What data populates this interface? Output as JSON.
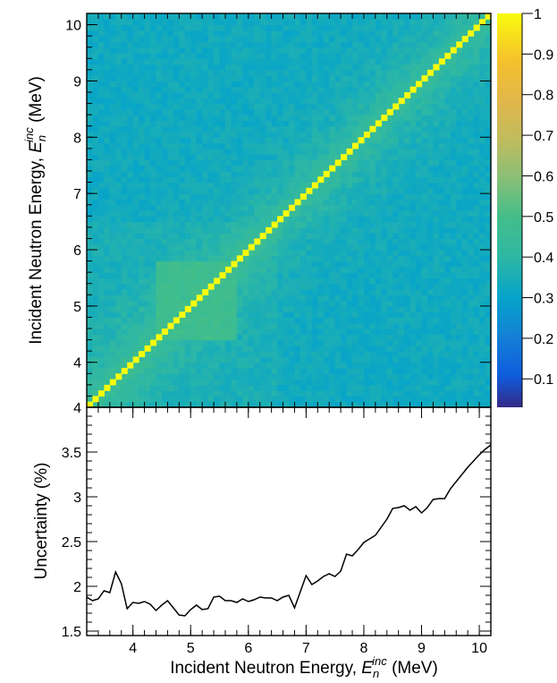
{
  "chart_data": [
    {
      "type": "heatmap",
      "title": "",
      "xlim": [
        3.2,
        10.2
      ],
      "ylim": [
        3.2,
        10.2
      ],
      "ylabel": {
        "main": "Incident Neutron Energy, ",
        "var": "E",
        "sub": "n",
        "sup": "inc",
        "unit": " (MeV)"
      },
      "yticks": [
        4,
        5,
        6,
        7,
        8,
        9,
        10
      ],
      "colorbar": {
        "range": [
          0.03,
          1
        ],
        "ticks": [
          0.1,
          0.2,
          0.3,
          0.4,
          0.5,
          0.6,
          0.7,
          0.8,
          0.9,
          1
        ],
        "tick_labels": [
          "0.1",
          "0.2",
          "0.3",
          "0.4",
          "0.5",
          "0.6",
          "0.7",
          "0.8",
          "0.9",
          "1"
        ],
        "palette": "parula"
      },
      "bins": 70,
      "description_values": {
        "diagonal": 1.0,
        "off_diagonal_typical": 0.35,
        "low_energy_block": {
          "range": [
            4.4,
            5.8
          ],
          "value": 0.5
        }
      }
    },
    {
      "type": "line",
      "xlabel": {
        "main": "Incident Neutron Energy, ",
        "var": "E",
        "sub": "n",
        "sup": "inc",
        "unit": " (MeV)"
      },
      "ylabel": "Uncertainty (%)",
      "xlim": [
        3.2,
        10.2
      ],
      "ylim": [
        1.45,
        4.0
      ],
      "xticks": [
        4,
        5,
        6,
        7,
        8,
        9,
        10
      ],
      "yticks": [
        1.5,
        2,
        2.5,
        3,
        3.5,
        4
      ],
      "ytick_labels": [
        "1.5",
        "2",
        "2.5",
        "3",
        "3.5",
        "4"
      ],
      "series": [
        {
          "color": "#000000",
          "x": [
            3.2,
            3.3,
            3.4,
            3.5,
            3.6,
            3.7,
            3.8,
            3.9,
            4.0,
            4.1,
            4.2,
            4.3,
            4.4,
            4.5,
            4.6,
            4.7,
            4.8,
            4.9,
            5.0,
            5.1,
            5.2,
            5.3,
            5.4,
            5.5,
            5.6,
            5.7,
            5.8,
            5.9,
            6.0,
            6.1,
            6.2,
            6.3,
            6.4,
            6.5,
            6.6,
            6.7,
            6.8,
            6.9,
            7.0,
            7.1,
            7.2,
            7.3,
            7.4,
            7.5,
            7.6,
            7.7,
            7.8,
            7.9,
            8.0,
            8.1,
            8.2,
            8.3,
            8.4,
            8.5,
            8.6,
            8.7,
            8.8,
            8.9,
            9.0,
            9.1,
            9.2,
            9.3,
            9.4,
            9.5,
            9.6,
            9.7,
            9.8,
            9.9,
            10.0,
            10.1,
            10.2
          ],
          "y": [
            1.88,
            1.84,
            1.86,
            1.95,
            1.93,
            2.16,
            2.03,
            1.75,
            1.82,
            1.81,
            1.83,
            1.8,
            1.73,
            1.79,
            1.84,
            1.76,
            1.68,
            1.67,
            1.74,
            1.79,
            1.74,
            1.75,
            1.88,
            1.89,
            1.84,
            1.84,
            1.82,
            1.86,
            1.83,
            1.85,
            1.88,
            1.87,
            1.87,
            1.84,
            1.88,
            1.9,
            1.76,
            1.94,
            2.12,
            2.02,
            2.06,
            2.11,
            2.14,
            2.11,
            2.17,
            2.36,
            2.34,
            2.41,
            2.49,
            2.53,
            2.57,
            2.66,
            2.75,
            2.87,
            2.88,
            2.9,
            2.85,
            2.89,
            2.82,
            2.88,
            2.97,
            2.98,
            2.98,
            3.09,
            3.17,
            3.25,
            3.33,
            3.4,
            3.47,
            3.53,
            3.58
          ]
        }
      ]
    }
  ]
}
